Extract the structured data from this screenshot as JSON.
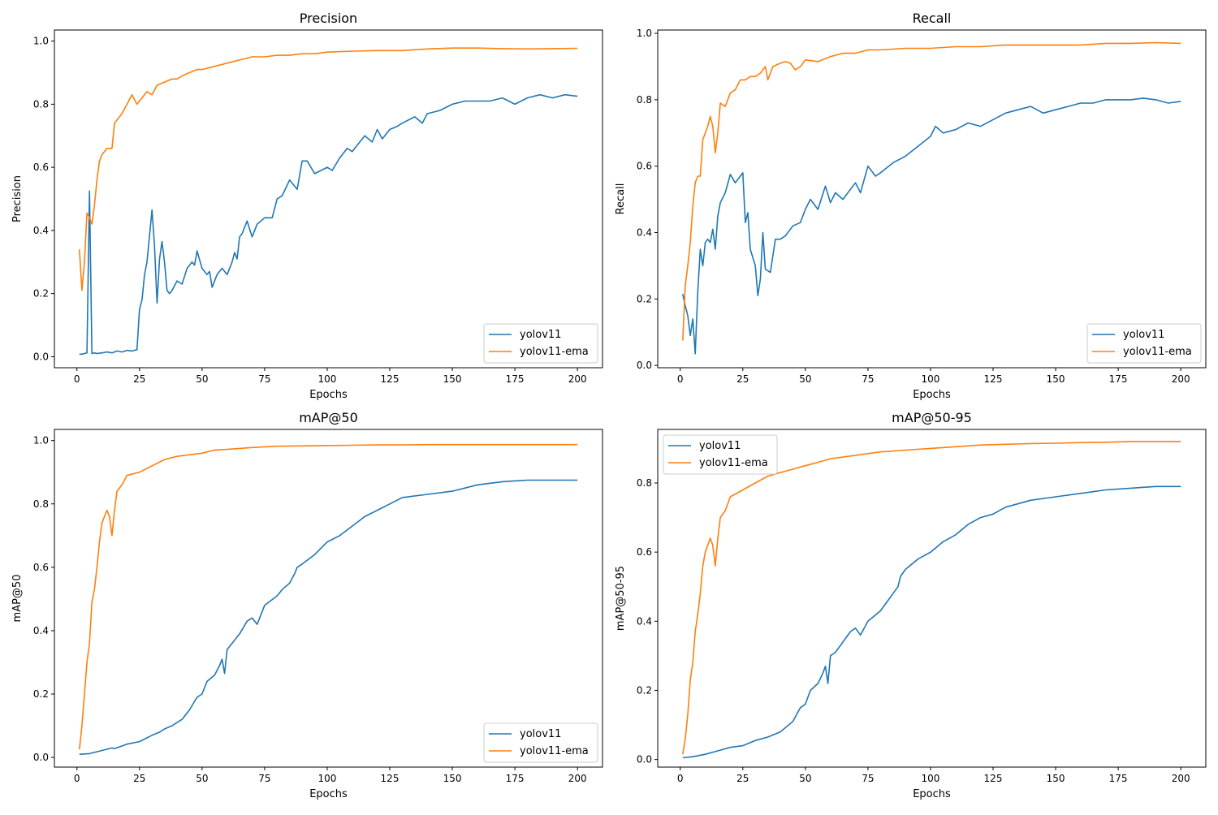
{
  "figure": {
    "background": "#ffffff"
  },
  "series_style": {
    "yolov11": {
      "label": "yolov11",
      "color": "#1f77b4"
    },
    "yolov11-ema": {
      "label": "yolov11-ema",
      "color": "#ff7f0e"
    }
  },
  "chart_data": [
    {
      "type": "line",
      "title": "Precision",
      "xlabel": "Epochs",
      "ylabel": "Precision",
      "xlim": [
        -9,
        210
      ],
      "ylim": [
        -0.035,
        1.035
      ],
      "xticks": [
        0,
        25,
        50,
        75,
        100,
        125,
        150,
        175,
        200
      ],
      "yticks": [
        0.0,
        0.2,
        0.4,
        0.6,
        0.8,
        1.0
      ],
      "ytick_labels": [
        "0.0",
        "0.2",
        "0.4",
        "0.6",
        "0.8",
        "1.0"
      ],
      "legend": "lower-right",
      "series": [
        {
          "name": "yolov11",
          "x": [
            1,
            2,
            3,
            4,
            5,
            6,
            7,
            8,
            10,
            12,
            14,
            16,
            18,
            20,
            22,
            24,
            25,
            26,
            27,
            28,
            30,
            31,
            32,
            33,
            34,
            35,
            36,
            37,
            38,
            40,
            42,
            44,
            46,
            47,
            48,
            50,
            52,
            53,
            54,
            56,
            58,
            60,
            62,
            63,
            64,
            65,
            66,
            68,
            70,
            72,
            75,
            78,
            80,
            82,
            85,
            88,
            90,
            92,
            95,
            100,
            102,
            105,
            108,
            110,
            112,
            115,
            118,
            120,
            122,
            125,
            128,
            130,
            135,
            138,
            140,
            145,
            150,
            155,
            160,
            165,
            170,
            175,
            180,
            185,
            190,
            195,
            200
          ],
          "values": [
            0.008,
            0.008,
            0.01,
            0.012,
            0.525,
            0.01,
            0.012,
            0.01,
            0.012,
            0.015,
            0.012,
            0.018,
            0.015,
            0.02,
            0.018,
            0.022,
            0.15,
            0.18,
            0.26,
            0.3,
            0.465,
            0.35,
            0.17,
            0.31,
            0.365,
            0.3,
            0.21,
            0.2,
            0.21,
            0.24,
            0.23,
            0.28,
            0.3,
            0.29,
            0.335,
            0.28,
            0.26,
            0.27,
            0.22,
            0.26,
            0.28,
            0.26,
            0.3,
            0.33,
            0.31,
            0.38,
            0.39,
            0.43,
            0.38,
            0.42,
            0.44,
            0.44,
            0.5,
            0.51,
            0.56,
            0.53,
            0.62,
            0.62,
            0.58,
            0.6,
            0.59,
            0.63,
            0.66,
            0.65,
            0.67,
            0.7,
            0.68,
            0.72,
            0.69,
            0.72,
            0.73,
            0.74,
            0.76,
            0.74,
            0.77,
            0.78,
            0.8,
            0.81,
            0.81,
            0.81,
            0.82,
            0.8,
            0.82,
            0.83,
            0.82,
            0.83,
            0.825
          ]
        },
        {
          "name": "yolov11-ema",
          "x": [
            1,
            2,
            3,
            4,
            5,
            6,
            7,
            8,
            9,
            10,
            12,
            14,
            15,
            16,
            18,
            20,
            22,
            24,
            26,
            28,
            30,
            32,
            35,
            38,
            40,
            42,
            45,
            48,
            50,
            55,
            60,
            65,
            70,
            75,
            80,
            85,
            90,
            95,
            100,
            110,
            120,
            130,
            140,
            150,
            160,
            170,
            180,
            190,
            200
          ],
          "values": [
            0.34,
            0.21,
            0.3,
            0.455,
            0.44,
            0.42,
            0.48,
            0.56,
            0.62,
            0.64,
            0.66,
            0.66,
            0.74,
            0.75,
            0.77,
            0.8,
            0.83,
            0.8,
            0.82,
            0.84,
            0.83,
            0.86,
            0.87,
            0.88,
            0.88,
            0.89,
            0.9,
            0.91,
            0.91,
            0.92,
            0.93,
            0.94,
            0.95,
            0.95,
            0.955,
            0.955,
            0.96,
            0.96,
            0.965,
            0.968,
            0.97,
            0.97,
            0.975,
            0.978,
            0.978,
            0.976,
            0.975,
            0.976,
            0.977
          ]
        }
      ]
    },
    {
      "type": "line",
      "title": "Recall",
      "xlabel": "Epochs",
      "ylabel": "Recall",
      "xlim": [
        -9,
        210
      ],
      "ylim": [
        -0.007,
        1.01
      ],
      "xticks": [
        0,
        25,
        50,
        75,
        100,
        125,
        150,
        175,
        200
      ],
      "yticks": [
        0.0,
        0.2,
        0.4,
        0.6,
        0.8,
        1.0
      ],
      "ytick_labels": [
        "0.0",
        "0.2",
        "0.4",
        "0.6",
        "0.8",
        "1.0"
      ],
      "legend": "lower-right",
      "series": [
        {
          "name": "yolov11",
          "x": [
            1,
            2,
            3,
            4,
            5,
            6,
            7,
            8,
            9,
            10,
            11,
            12,
            13,
            14,
            15,
            16,
            18,
            20,
            22,
            24,
            25,
            26,
            27,
            28,
            30,
            31,
            32,
            33,
            34,
            36,
            38,
            40,
            42,
            45,
            48,
            50,
            52,
            55,
            58,
            60,
            62,
            65,
            68,
            70,
            72,
            75,
            78,
            80,
            85,
            90,
            95,
            100,
            102,
            105,
            110,
            115,
            120,
            125,
            130,
            135,
            140,
            145,
            150,
            155,
            160,
            165,
            170,
            175,
            180,
            185,
            190,
            195,
            200
          ],
          "values": [
            0.215,
            0.18,
            0.15,
            0.09,
            0.14,
            0.035,
            0.22,
            0.35,
            0.3,
            0.37,
            0.38,
            0.37,
            0.41,
            0.35,
            0.45,
            0.49,
            0.52,
            0.575,
            0.55,
            0.57,
            0.58,
            0.43,
            0.46,
            0.35,
            0.3,
            0.21,
            0.26,
            0.4,
            0.29,
            0.28,
            0.38,
            0.38,
            0.39,
            0.42,
            0.43,
            0.47,
            0.5,
            0.47,
            0.54,
            0.49,
            0.52,
            0.5,
            0.53,
            0.55,
            0.52,
            0.6,
            0.57,
            0.58,
            0.61,
            0.63,
            0.66,
            0.69,
            0.72,
            0.7,
            0.71,
            0.73,
            0.72,
            0.74,
            0.76,
            0.77,
            0.78,
            0.76,
            0.77,
            0.78,
            0.79,
            0.79,
            0.8,
            0.8,
            0.8,
            0.805,
            0.8,
            0.79,
            0.795
          ]
        },
        {
          "name": "yolov11-ema",
          "x": [
            1,
            2,
            3,
            4,
            5,
            6,
            7,
            8,
            9,
            10,
            11,
            12,
            13,
            14,
            15,
            16,
            18,
            20,
            22,
            24,
            26,
            28,
            30,
            32,
            34,
            35,
            37,
            40,
            42,
            44,
            46,
            48,
            50,
            55,
            60,
            65,
            70,
            75,
            80,
            90,
            100,
            110,
            120,
            130,
            140,
            150,
            160,
            170,
            180,
            190,
            200
          ],
          "values": [
            0.075,
            0.24,
            0.3,
            0.37,
            0.48,
            0.55,
            0.57,
            0.57,
            0.68,
            0.7,
            0.72,
            0.75,
            0.72,
            0.64,
            0.7,
            0.79,
            0.78,
            0.82,
            0.83,
            0.86,
            0.86,
            0.87,
            0.87,
            0.88,
            0.9,
            0.86,
            0.9,
            0.91,
            0.915,
            0.91,
            0.89,
            0.9,
            0.92,
            0.915,
            0.93,
            0.94,
            0.94,
            0.95,
            0.95,
            0.955,
            0.955,
            0.96,
            0.96,
            0.965,
            0.965,
            0.965,
            0.965,
            0.97,
            0.97,
            0.972,
            0.97
          ]
        }
      ]
    },
    {
      "type": "line",
      "title": "mAP@50",
      "xlabel": "Epochs",
      "ylabel": "mAP@50",
      "xlim": [
        -9,
        210
      ],
      "ylim": [
        -0.0305,
        1.035
      ],
      "xticks": [
        0,
        25,
        50,
        75,
        100,
        125,
        150,
        175,
        200
      ],
      "yticks": [
        0.0,
        0.2,
        0.4,
        0.6,
        0.8,
        1.0
      ],
      "ytick_labels": [
        "0.0",
        "0.2",
        "0.4",
        "0.6",
        "0.8",
        "1.0"
      ],
      "legend": "lower-right",
      "series": [
        {
          "name": "yolov11",
          "x": [
            1,
            5,
            10,
            14,
            15,
            20,
            25,
            30,
            33,
            35,
            38,
            40,
            42,
            45,
            48,
            50,
            52,
            55,
            57,
            58,
            59,
            60,
            62,
            65,
            68,
            70,
            72,
            75,
            80,
            82,
            85,
            87,
            88,
            90,
            95,
            100,
            105,
            110,
            115,
            120,
            125,
            130,
            140,
            150,
            160,
            170,
            180,
            190,
            200
          ],
          "values": [
            0.01,
            0.012,
            0.022,
            0.03,
            0.028,
            0.042,
            0.05,
            0.07,
            0.08,
            0.09,
            0.1,
            0.11,
            0.12,
            0.15,
            0.19,
            0.2,
            0.24,
            0.26,
            0.29,
            0.31,
            0.265,
            0.34,
            0.36,
            0.39,
            0.43,
            0.44,
            0.42,
            0.48,
            0.51,
            0.53,
            0.55,
            0.58,
            0.6,
            0.61,
            0.64,
            0.68,
            0.7,
            0.73,
            0.76,
            0.78,
            0.8,
            0.82,
            0.83,
            0.84,
            0.86,
            0.87,
            0.875,
            0.875,
            0.875
          ]
        },
        {
          "name": "yolov11-ema",
          "x": [
            1,
            2,
            3,
            4,
            5,
            6,
            7,
            8,
            9,
            10,
            11,
            12,
            13,
            14,
            15,
            16,
            18,
            20,
            25,
            30,
            35,
            40,
            45,
            50,
            55,
            60,
            70,
            80,
            90,
            100,
            110,
            120,
            130,
            140,
            150,
            160,
            170,
            180,
            190,
            200
          ],
          "values": [
            0.025,
            0.1,
            0.2,
            0.3,
            0.36,
            0.49,
            0.53,
            0.6,
            0.68,
            0.74,
            0.76,
            0.78,
            0.76,
            0.7,
            0.78,
            0.84,
            0.86,
            0.89,
            0.9,
            0.92,
            0.94,
            0.95,
            0.955,
            0.96,
            0.97,
            0.972,
            0.978,
            0.982,
            0.983,
            0.984,
            0.985,
            0.986,
            0.986,
            0.987,
            0.987,
            0.987,
            0.987,
            0.987,
            0.987,
            0.987
          ]
        }
      ]
    },
    {
      "type": "line",
      "title": "mAP@50-95",
      "xlabel": "Epochs",
      "ylabel": "mAP@50-95",
      "xlim": [
        -9,
        210
      ],
      "ylim": [
        -0.022,
        0.955
      ],
      "xticks": [
        0,
        25,
        50,
        75,
        100,
        125,
        150,
        175,
        200
      ],
      "yticks": [
        0.0,
        0.2,
        0.4,
        0.6,
        0.8
      ],
      "ytick_labels": [
        "0.0",
        "0.2",
        "0.4",
        "0.6",
        "0.8"
      ],
      "legend": "top-left",
      "series": [
        {
          "name": "yolov11",
          "x": [
            1,
            5,
            10,
            15,
            20,
            25,
            30,
            35,
            40,
            45,
            48,
            50,
            52,
            55,
            57,
            58,
            59,
            60,
            62,
            65,
            68,
            70,
            72,
            75,
            80,
            82,
            85,
            87,
            88,
            90,
            95,
            100,
            105,
            110,
            115,
            120,
            125,
            130,
            140,
            150,
            160,
            170,
            180,
            190,
            200
          ],
          "values": [
            0.005,
            0.008,
            0.015,
            0.025,
            0.035,
            0.04,
            0.055,
            0.065,
            0.08,
            0.11,
            0.15,
            0.16,
            0.2,
            0.22,
            0.25,
            0.27,
            0.22,
            0.3,
            0.31,
            0.34,
            0.37,
            0.38,
            0.36,
            0.4,
            0.43,
            0.45,
            0.48,
            0.5,
            0.53,
            0.55,
            0.58,
            0.6,
            0.63,
            0.65,
            0.68,
            0.7,
            0.71,
            0.73,
            0.75,
            0.76,
            0.77,
            0.78,
            0.785,
            0.79,
            0.79
          ]
        },
        {
          "name": "yolov11-ema",
          "x": [
            1,
            2,
            3,
            4,
            5,
            6,
            7,
            8,
            9,
            10,
            11,
            12,
            13,
            14,
            15,
            16,
            18,
            20,
            25,
            30,
            35,
            40,
            45,
            50,
            55,
            60,
            70,
            80,
            90,
            100,
            110,
            120,
            130,
            140,
            150,
            160,
            170,
            180,
            190,
            200
          ],
          "values": [
            0.015,
            0.06,
            0.13,
            0.23,
            0.28,
            0.37,
            0.42,
            0.48,
            0.56,
            0.6,
            0.62,
            0.64,
            0.62,
            0.56,
            0.64,
            0.7,
            0.72,
            0.76,
            0.78,
            0.8,
            0.82,
            0.83,
            0.84,
            0.85,
            0.86,
            0.87,
            0.88,
            0.89,
            0.895,
            0.9,
            0.905,
            0.91,
            0.912,
            0.914,
            0.915,
            0.917,
            0.918,
            0.92,
            0.92,
            0.92
          ]
        }
      ]
    }
  ]
}
